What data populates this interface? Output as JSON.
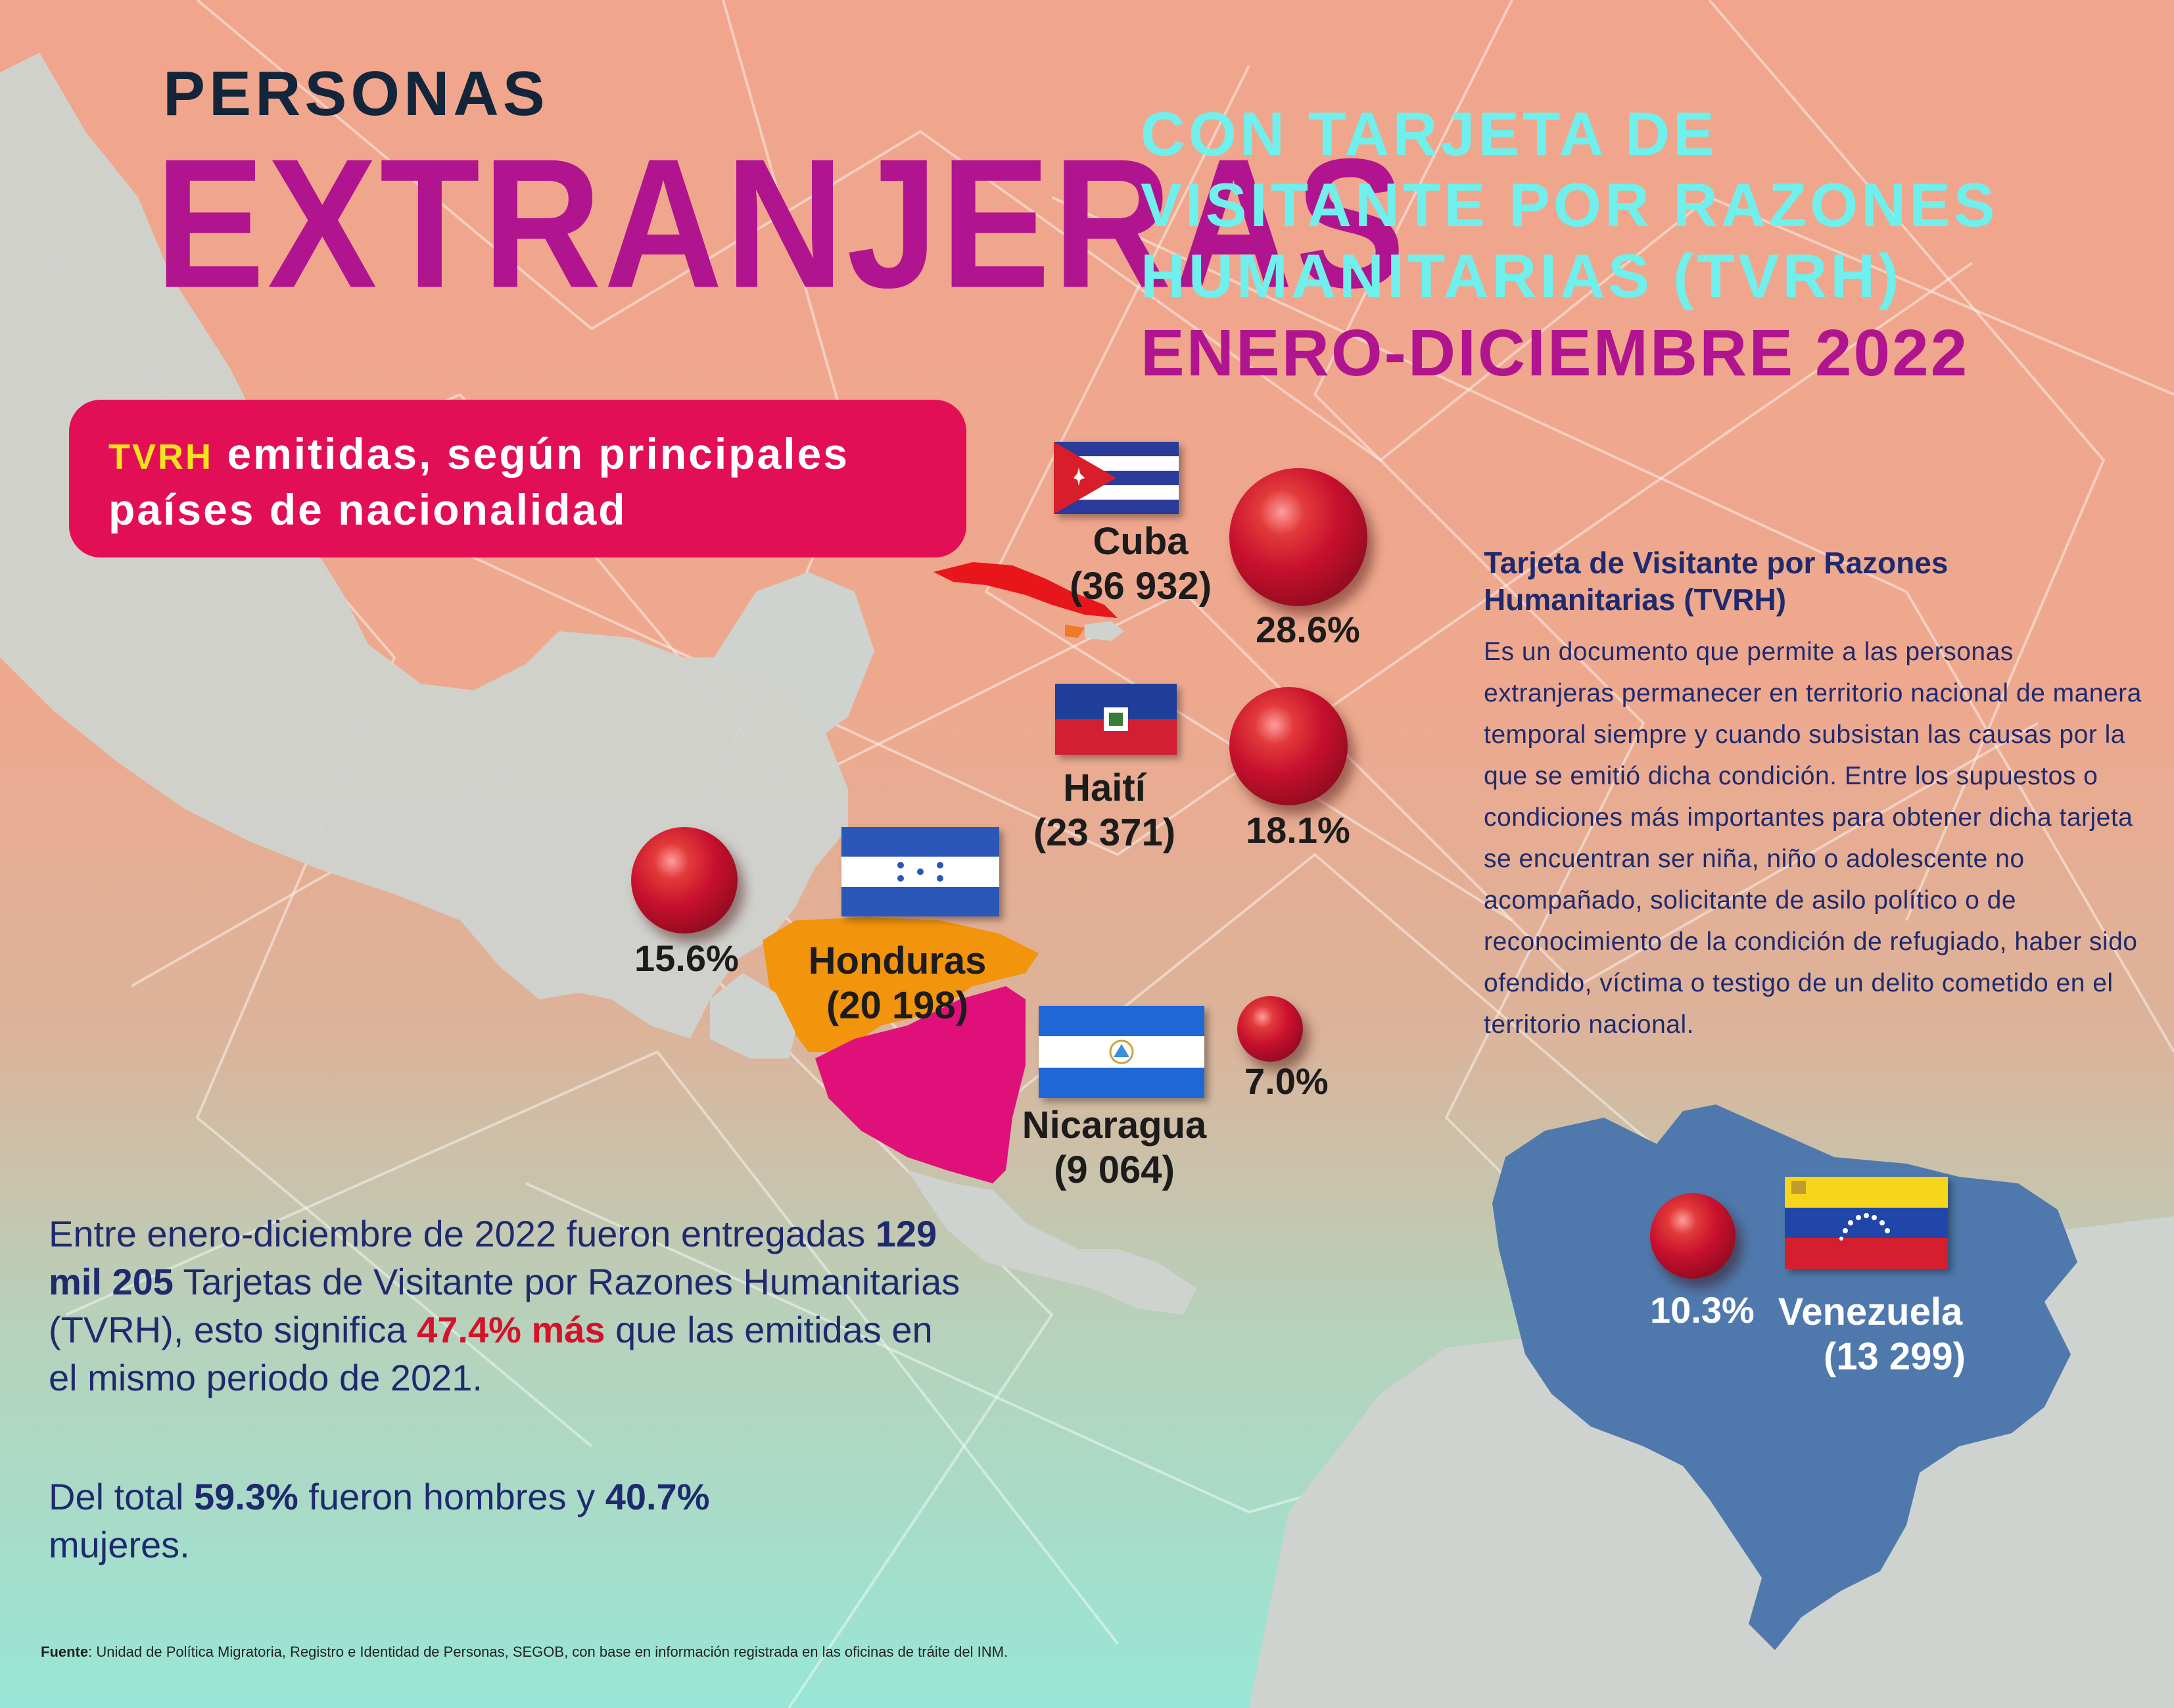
{
  "header": {
    "line1": "PERSONAS",
    "line2": "EXTRANJERAS",
    "subtitle_lines": [
      "CON TARJETA DE",
      "VISITANTE POR RAZONES",
      "HUMANITARIAS (TVRH)"
    ],
    "period": "ENERO-DICIEMBRE 2022"
  },
  "box": {
    "highlight": "TVRH",
    "line1_rest": " emitidas, según principales",
    "line2": "países de nacionalidad"
  },
  "countries": [
    {
      "name": "Cuba",
      "count": "(36 932)",
      "percent": "28.6%",
      "share": 28.6,
      "flag": "cuba-flag"
    },
    {
      "name": "Haití",
      "count": "(23 371)",
      "percent": "18.1%",
      "share": 18.1,
      "flag": "haiti-flag"
    },
    {
      "name": "Honduras",
      "count": "(20 198)",
      "percent": "15.6%",
      "share": 15.6,
      "flag": "honduras-flag"
    },
    {
      "name": "Nicaragua",
      "count": "(9 064)",
      "percent": "7.0%",
      "share": 7.0,
      "flag": "nicaragua-flag"
    },
    {
      "name": "Venezuela",
      "count": "(13 299)",
      "percent": "10.3%",
      "share": 10.3,
      "flag": "venezuela-flag"
    }
  ],
  "definition": {
    "title_line1": "Tarjeta de Visitante por Razones",
    "title_line2": "Humanitarias (TVRH)",
    "body": "Es un documento que permite a las personas extranjeras permanecer en territorio nacional de manera temporal siempre y cuando subsistan las causas por la que se emitió dicha condición. Entre los supuestos o condiciones más importantes para obtener dicha tarjeta se encuentran ser niña, niño o adolescente no acompañado, solicitante de asilo político o de reconocimiento de la condición de refugiado, haber sido ofendido, víctima o testigo de un delito cometido en el territorio nacional."
  },
  "summary": {
    "p1_a": "Entre enero-diciembre de 2022  fueron entregadas ",
    "p1_total": "129 mil 205",
    "p1_b": " Tarjetas de Visitante por Razones Humanitarias (TVRH), esto significa ",
    "p1_increase": "47.4% más",
    "p1_c": " que las emitidas en el mismo periodo de 2021.",
    "p2_a": "Del total ",
    "p2_men": "59.3%",
    "p2_b": " fueron hombres y ",
    "p2_women": "40.7%",
    "p2_c": " mujeres."
  },
  "source": {
    "label": "Fuente",
    "text": ": Unidad de Política Migratoria, Registro e Identidad de Personas, SEGOB, con base en información registrada en las oficinas de tráite del INM."
  },
  "colors": {
    "magenta": "#b0148f",
    "cyan": "#6ff0ec",
    "navy": "#1f2a6e",
    "box": "#e30f56",
    "honduras_fill": "#f2940c",
    "nicaragua_fill": "#e0107a",
    "venezuela_fill": "#4f79ad",
    "land": "#cfd3cf"
  }
}
